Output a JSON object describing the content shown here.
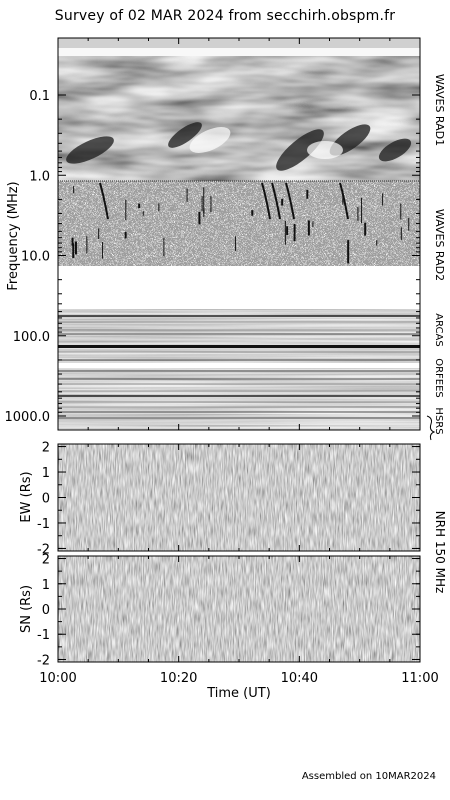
{
  "title": "Survey of 02 MAR 2024 from secchirh.obspm.fr",
  "footer": "Assembled on 10MAR2024",
  "chart_data": [
    {
      "type": "heatmap",
      "name": "dynamic-spectrum",
      "ylabel": "Frequency (MHz)",
      "scale": "log",
      "yticks": [
        "0.1",
        "1.0",
        "10.0",
        "100.0",
        "1000.0"
      ],
      "ytick_values": [
        0.1,
        1.0,
        10.0,
        100.0,
        1000.0
      ],
      "ylim": [
        0.02,
        1100
      ],
      "instruments": [
        {
          "label": "WAVES RAD1",
          "range_mhz": [
            0.02,
            1.07
          ]
        },
        {
          "label": "WAVES RAD2",
          "range_mhz": [
            1.07,
            14.0
          ]
        },
        {
          "label": "ARCAS",
          "range_mhz": [
            25,
            70
          ]
        },
        {
          "label": "ORFEES",
          "range_mhz": [
            140,
            1000
          ]
        },
        {
          "label": "HSRS",
          "range_mhz": [
            900,
            1100
          ]
        }
      ]
    },
    {
      "type": "heatmap",
      "name": "nrh-ew",
      "ylabel": "EW (Rs)",
      "yticks": [
        "2",
        "1",
        "0",
        "-1",
        "-2"
      ],
      "ytick_values": [
        2,
        1,
        0,
        -1,
        -2
      ],
      "ylim": [
        -2.1,
        2.1
      ]
    },
    {
      "type": "heatmap",
      "name": "nrh-sn",
      "ylabel": "SN (Rs)",
      "yticks": [
        "2",
        "1",
        "0",
        "-1",
        "-2"
      ],
      "ytick_values": [
        2,
        1,
        0,
        -1,
        -2
      ],
      "ylim": [
        -2.1,
        2.1
      ]
    }
  ],
  "nrh_label": "NRH 150 MHz",
  "xaxis": {
    "label": "Time (UT)",
    "ticks": [
      "10:00",
      "10:20",
      "10:40",
      "11:00"
    ],
    "tick_minutes": [
      0,
      20,
      40,
      60
    ],
    "range_minutes": [
      0,
      60
    ]
  }
}
